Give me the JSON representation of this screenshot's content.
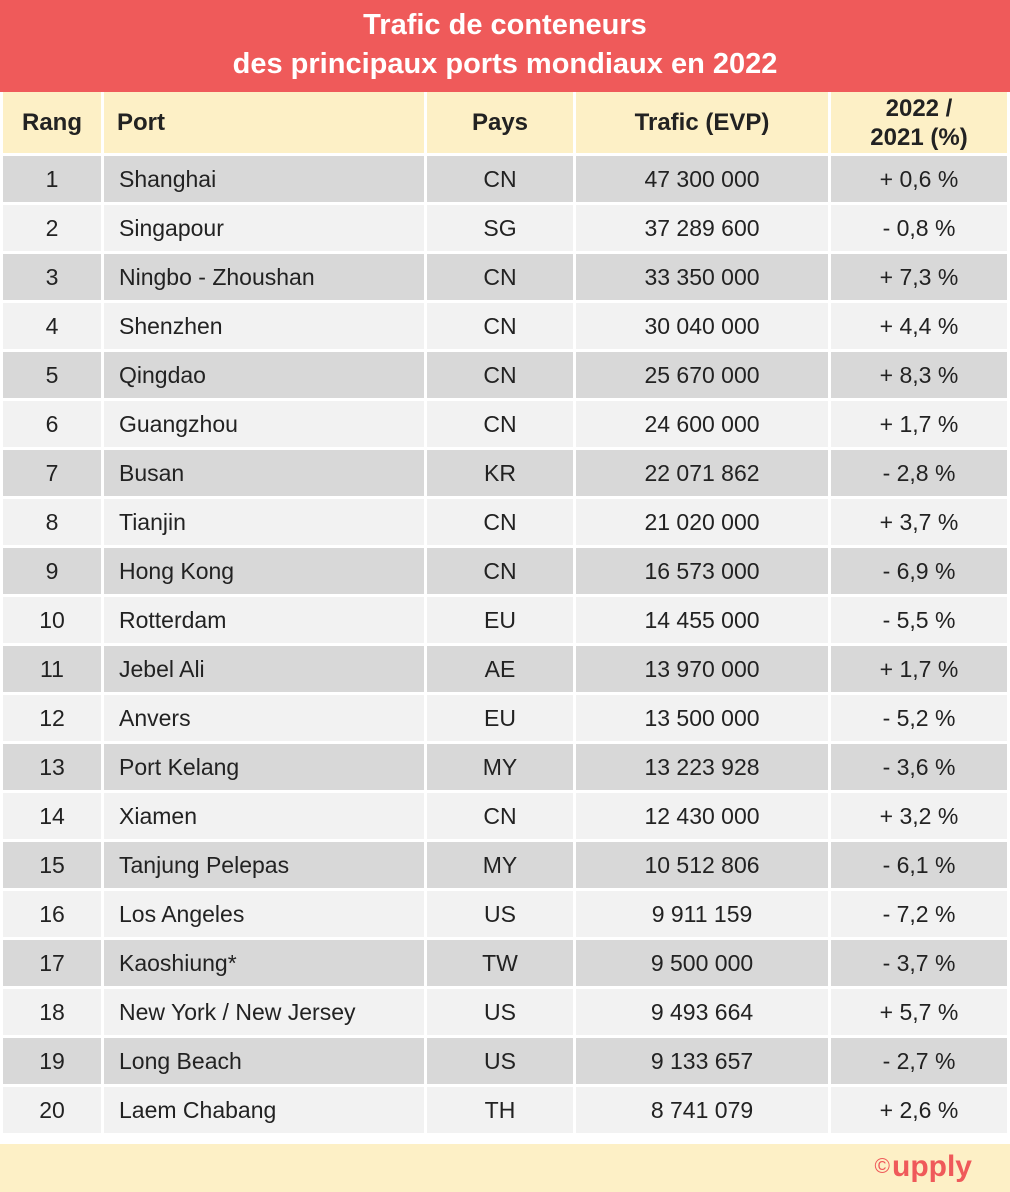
{
  "title": {
    "line1": "Trafic de conteneurs",
    "line2": "des principaux ports mondiaux en 2022"
  },
  "colors": {
    "title_bg": "#ef5a5a",
    "header_bg": "#fdf0c6",
    "row_dark": "#d8d8d8",
    "row_light": "#f2f2f2",
    "logo": "#ef5a5a"
  },
  "chart_data": {
    "type": "table",
    "title": "Trafic de conteneurs des principaux ports mondiaux en 2022",
    "columns": [
      "Rang",
      "Port",
      "Pays",
      "Trafic (EVP)",
      "2022 / 2021 (%)"
    ],
    "rows": [
      [
        "1",
        "Shanghai",
        "CN",
        "47 300 000",
        "+ 0,6 %"
      ],
      [
        "2",
        "Singapour",
        "SG",
        "37 289 600",
        "- 0,8 %"
      ],
      [
        "3",
        "Ningbo - Zhoushan",
        "CN",
        "33 350 000",
        "+ 7,3 %"
      ],
      [
        "4",
        "Shenzhen",
        "CN",
        "30 040 000",
        "+ 4,4 %"
      ],
      [
        "5",
        "Qingdao",
        "CN",
        "25 670 000",
        "+ 8,3 %"
      ],
      [
        "6",
        "Guangzhou",
        "CN",
        "24 600 000",
        "+ 1,7 %"
      ],
      [
        "7",
        "Busan",
        "KR",
        "22 071 862",
        "- 2,8 %"
      ],
      [
        "8",
        "Tianjin",
        "CN",
        "21 020 000",
        "+ 3,7 %"
      ],
      [
        "9",
        "Hong Kong",
        "CN",
        "16 573 000",
        "-  6,9 %"
      ],
      [
        "10",
        "Rotterdam",
        "EU",
        "14 455 000",
        "- 5,5 %"
      ],
      [
        "11",
        "Jebel Ali",
        "AE",
        "13 970 000",
        "+ 1,7 %"
      ],
      [
        "12",
        "Anvers",
        "EU",
        "13 500 000",
        "- 5,2 %"
      ],
      [
        "13",
        "Port Kelang",
        "MY",
        "13 223 928",
        "- 3,6 %"
      ],
      [
        "14",
        "Xiamen",
        "CN",
        "12 430 000",
        "+ 3,2 %"
      ],
      [
        "15",
        "Tanjung Pelepas",
        "MY",
        "10 512 806",
        "- 6,1 %"
      ],
      [
        "16",
        "Los Angeles",
        "US",
        "9 911 159",
        "- 7,2 %"
      ],
      [
        "17",
        "Kaoshiung*",
        "TW",
        "9 500 000",
        "- 3,7 %"
      ],
      [
        "18",
        "New York / New Jersey",
        "US",
        "9 493 664",
        "+ 5,7 %"
      ],
      [
        "19",
        "Long Beach",
        "US",
        "9 133 657",
        "- 2,7 %"
      ],
      [
        "20",
        "Laem Chabang",
        "TH",
        "8 741 079",
        "+ 2,6 %"
      ]
    ]
  },
  "header": {
    "rang": "Rang",
    "port": "Port",
    "pays": "Pays",
    "trafic": "Trafic (EVP)",
    "var_line1": "2022 /",
    "var_line2": "2021 (%)"
  },
  "footer": {
    "copyright": "©",
    "brand": "upply"
  }
}
